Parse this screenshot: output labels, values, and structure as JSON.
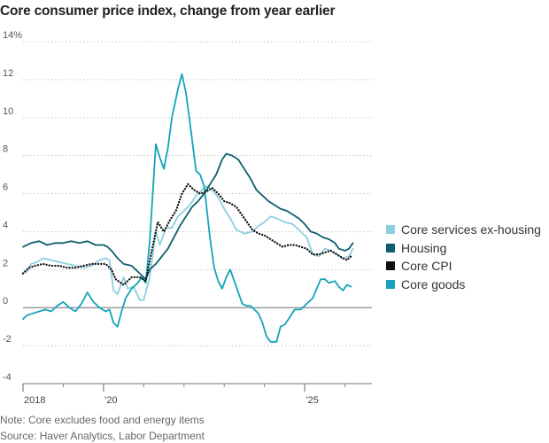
{
  "header": {
    "title": "Core consumer price index, change from year earlier"
  },
  "footer": {
    "note": "Note: Core excludes food and energy items",
    "source": "Source: Haver Analytics, Labor Department"
  },
  "chart_data": {
    "type": "line",
    "title": "Core consumer price index, change from year earlier",
    "xlabel": "",
    "ylabel": "",
    "xlim": [
      2018.0,
      2026.67
    ],
    "ylim": [
      -4,
      14
    ],
    "grid": true,
    "legend_position": "right",
    "x_tick_labels": [
      {
        "x": 2018,
        "label": "2018"
      },
      {
        "x": 2020,
        "label": "’20"
      },
      {
        "x": 2025,
        "label": "’25"
      }
    ],
    "x_minor_ticks": [
      2019,
      2021,
      2022,
      2023,
      2024,
      2026
    ],
    "y_tick_labels": [
      {
        "y": 14,
        "label": "14%"
      },
      {
        "y": 12,
        "label": "12"
      },
      {
        "y": 10,
        "label": "10"
      },
      {
        "y": 8,
        "label": "8"
      },
      {
        "y": 6,
        "label": "6"
      },
      {
        "y": 4,
        "label": "4"
      },
      {
        "y": 2,
        "label": "2"
      },
      {
        "y": 0,
        "label": "0"
      },
      {
        "y": -2,
        "label": "-2"
      },
      {
        "y": -4,
        "label": "-4"
      }
    ],
    "series": [
      {
        "name": "Core services ex-housing",
        "color": "#8ecfdf",
        "style": "solid",
        "points": [
          [
            2018.0,
            1.8
          ],
          [
            2018.1,
            1.9
          ],
          [
            2018.2,
            2.3
          ],
          [
            2018.35,
            2.4
          ],
          [
            2018.5,
            2.6
          ],
          [
            2018.7,
            2.5
          ],
          [
            2018.9,
            2.4
          ],
          [
            2019.1,
            2.3
          ],
          [
            2019.3,
            2.2
          ],
          [
            2019.5,
            2.1
          ],
          [
            2019.7,
            2.2
          ],
          [
            2019.9,
            2.5
          ],
          [
            2020.05,
            2.6
          ],
          [
            2020.15,
            2.5
          ],
          [
            2020.25,
            0.9
          ],
          [
            2020.35,
            0.7
          ],
          [
            2020.5,
            1.6
          ],
          [
            2020.6,
            1.0
          ],
          [
            2020.75,
            1.1
          ],
          [
            2020.9,
            0.4
          ],
          [
            2021.0,
            0.4
          ],
          [
            2021.15,
            1.6
          ],
          [
            2021.3,
            4.0
          ],
          [
            2021.4,
            3.3
          ],
          [
            2021.55,
            4.2
          ],
          [
            2021.7,
            4.2
          ],
          [
            2021.85,
            4.8
          ],
          [
            2022.0,
            5.1
          ],
          [
            2022.15,
            5.4
          ],
          [
            2022.3,
            5.9
          ],
          [
            2022.45,
            6.2
          ],
          [
            2022.55,
            6.4
          ],
          [
            2022.7,
            6.2
          ],
          [
            2022.85,
            5.8
          ],
          [
            2023.0,
            5.2
          ],
          [
            2023.15,
            4.7
          ],
          [
            2023.3,
            4.1
          ],
          [
            2023.5,
            3.9
          ],
          [
            2023.7,
            4.0
          ],
          [
            2023.85,
            4.3
          ],
          [
            2024.0,
            4.5
          ],
          [
            2024.15,
            4.8
          ],
          [
            2024.3,
            4.7
          ],
          [
            2024.5,
            4.5
          ],
          [
            2024.7,
            4.4
          ],
          [
            2024.9,
            4.0
          ],
          [
            2025.05,
            3.7
          ],
          [
            2025.2,
            2.8
          ],
          [
            2025.35,
            2.7
          ],
          [
            2025.5,
            3.1
          ],
          [
            2025.65,
            3.0
          ],
          [
            2025.8,
            2.8
          ],
          [
            2025.95,
            2.6
          ],
          [
            2026.1,
            2.7
          ],
          [
            2026.2,
            3.1
          ]
        ]
      },
      {
        "name": "Housing",
        "color": "#0d5f6e",
        "style": "solid",
        "points": [
          [
            2018.0,
            3.2
          ],
          [
            2018.2,
            3.4
          ],
          [
            2018.4,
            3.5
          ],
          [
            2018.6,
            3.3
          ],
          [
            2018.8,
            3.4
          ],
          [
            2019.0,
            3.4
          ],
          [
            2019.2,
            3.5
          ],
          [
            2019.4,
            3.4
          ],
          [
            2019.6,
            3.5
          ],
          [
            2019.8,
            3.3
          ],
          [
            2020.0,
            3.3
          ],
          [
            2020.1,
            3.2
          ],
          [
            2020.2,
            3.0
          ],
          [
            2020.35,
            2.6
          ],
          [
            2020.5,
            2.3
          ],
          [
            2020.7,
            2.2
          ],
          [
            2020.9,
            1.8
          ],
          [
            2021.05,
            1.5
          ],
          [
            2021.15,
            2.0
          ],
          [
            2021.3,
            2.3
          ],
          [
            2021.45,
            2.7
          ],
          [
            2021.6,
            3.1
          ],
          [
            2021.75,
            3.7
          ],
          [
            2021.9,
            4.3
          ],
          [
            2022.05,
            4.8
          ],
          [
            2022.2,
            5.3
          ],
          [
            2022.35,
            5.6
          ],
          [
            2022.5,
            6.0
          ],
          [
            2022.65,
            6.5
          ],
          [
            2022.8,
            7.0
          ],
          [
            2022.95,
            7.8
          ],
          [
            2023.05,
            8.1
          ],
          [
            2023.2,
            8.0
          ],
          [
            2023.35,
            7.8
          ],
          [
            2023.5,
            7.3
          ],
          [
            2023.65,
            6.8
          ],
          [
            2023.8,
            6.2
          ],
          [
            2023.95,
            5.9
          ],
          [
            2024.1,
            5.6
          ],
          [
            2024.25,
            5.4
          ],
          [
            2024.4,
            5.2
          ],
          [
            2024.55,
            5.1
          ],
          [
            2024.7,
            4.9
          ],
          [
            2024.85,
            4.7
          ],
          [
            2025.0,
            4.4
          ],
          [
            2025.15,
            4.0
          ],
          [
            2025.3,
            3.9
          ],
          [
            2025.45,
            3.7
          ],
          [
            2025.6,
            3.6
          ],
          [
            2025.75,
            3.4
          ],
          [
            2025.85,
            3.1
          ],
          [
            2026.0,
            3.0
          ],
          [
            2026.1,
            3.1
          ],
          [
            2026.2,
            3.4
          ]
        ]
      },
      {
        "name": "Core CPI",
        "color": "#111111",
        "style": "dotted",
        "points": [
          [
            2018.0,
            1.8
          ],
          [
            2018.15,
            2.1
          ],
          [
            2018.3,
            2.2
          ],
          [
            2018.5,
            2.3
          ],
          [
            2018.7,
            2.2
          ],
          [
            2018.9,
            2.2
          ],
          [
            2019.1,
            2.1
          ],
          [
            2019.3,
            2.1
          ],
          [
            2019.5,
            2.2
          ],
          [
            2019.7,
            2.3
          ],
          [
            2019.9,
            2.3
          ],
          [
            2020.05,
            2.3
          ],
          [
            2020.2,
            2.0
          ],
          [
            2020.3,
            1.5
          ],
          [
            2020.5,
            1.2
          ],
          [
            2020.7,
            1.6
          ],
          [
            2020.9,
            1.6
          ],
          [
            2021.05,
            1.4
          ],
          [
            2021.2,
            3.0
          ],
          [
            2021.35,
            4.5
          ],
          [
            2021.5,
            4.0
          ],
          [
            2021.65,
            4.6
          ],
          [
            2021.8,
            5.1
          ],
          [
            2021.95,
            6.0
          ],
          [
            2022.1,
            6.5
          ],
          [
            2022.25,
            6.2
          ],
          [
            2022.4,
            6.0
          ],
          [
            2022.55,
            6.1
          ],
          [
            2022.7,
            6.3
          ],
          [
            2022.85,
            6.0
          ],
          [
            2023.0,
            5.6
          ],
          [
            2023.15,
            5.5
          ],
          [
            2023.3,
            5.3
          ],
          [
            2023.5,
            4.7
          ],
          [
            2023.7,
            4.1
          ],
          [
            2023.85,
            3.9
          ],
          [
            2024.0,
            3.8
          ],
          [
            2024.15,
            3.6
          ],
          [
            2024.3,
            3.4
          ],
          [
            2024.45,
            3.2
          ],
          [
            2024.6,
            3.3
          ],
          [
            2024.75,
            3.3
          ],
          [
            2024.9,
            3.2
          ],
          [
            2025.05,
            3.1
          ],
          [
            2025.2,
            2.8
          ],
          [
            2025.35,
            2.8
          ],
          [
            2025.5,
            2.9
          ],
          [
            2025.65,
            3.0
          ],
          [
            2025.8,
            2.8
          ],
          [
            2025.95,
            2.6
          ],
          [
            2026.05,
            2.5
          ],
          [
            2026.15,
            2.7
          ]
        ]
      },
      {
        "name": "Core goods",
        "color": "#14a3ba",
        "style": "solid",
        "points": [
          [
            2018.0,
            -0.6
          ],
          [
            2018.1,
            -0.4
          ],
          [
            2018.25,
            -0.3
          ],
          [
            2018.4,
            -0.2
          ],
          [
            2018.55,
            -0.1
          ],
          [
            2018.7,
            -0.2
          ],
          [
            2018.85,
            0.1
          ],
          [
            2019.0,
            0.3
          ],
          [
            2019.15,
            0.0
          ],
          [
            2019.3,
            -0.2
          ],
          [
            2019.45,
            0.2
          ],
          [
            2019.6,
            0.8
          ],
          [
            2019.75,
            0.3
          ],
          [
            2019.9,
            0.0
          ],
          [
            2020.05,
            -0.2
          ],
          [
            2020.15,
            -0.1
          ],
          [
            2020.25,
            -0.8
          ],
          [
            2020.35,
            -1.0
          ],
          [
            2020.45,
            -0.2
          ],
          [
            2020.55,
            0.5
          ],
          [
            2020.7,
            1.0
          ],
          [
            2020.85,
            1.3
          ],
          [
            2020.95,
            1.6
          ],
          [
            2021.05,
            1.3
          ],
          [
            2021.15,
            3.5
          ],
          [
            2021.3,
            8.6
          ],
          [
            2021.4,
            7.9
          ],
          [
            2021.5,
            7.3
          ],
          [
            2021.6,
            8.4
          ],
          [
            2021.7,
            10.0
          ],
          [
            2021.85,
            11.5
          ],
          [
            2021.95,
            12.3
          ],
          [
            2022.05,
            11.3
          ],
          [
            2022.15,
            9.7
          ],
          [
            2022.3,
            7.2
          ],
          [
            2022.4,
            7.0
          ],
          [
            2022.5,
            6.4
          ],
          [
            2022.55,
            5.5
          ],
          [
            2022.65,
            3.6
          ],
          [
            2022.75,
            2.1
          ],
          [
            2022.85,
            1.4
          ],
          [
            2022.95,
            1.0
          ],
          [
            2023.05,
            1.6
          ],
          [
            2023.15,
            2.0
          ],
          [
            2023.25,
            1.4
          ],
          [
            2023.35,
            0.8
          ],
          [
            2023.45,
            0.2
          ],
          [
            2023.55,
            0.1
          ],
          [
            2023.65,
            0.1
          ],
          [
            2023.75,
            -0.1
          ],
          [
            2023.85,
            -0.3
          ],
          [
            2023.95,
            -0.8
          ],
          [
            2024.05,
            -1.5
          ],
          [
            2024.15,
            -1.8
          ],
          [
            2024.3,
            -1.8
          ],
          [
            2024.4,
            -1.0
          ],
          [
            2024.5,
            -0.9
          ],
          [
            2024.6,
            -0.6
          ],
          [
            2024.75,
            -0.1
          ],
          [
            2024.9,
            -0.1
          ],
          [
            2025.05,
            0.2
          ],
          [
            2025.2,
            0.5
          ],
          [
            2025.3,
            1.0
          ],
          [
            2025.4,
            1.5
          ],
          [
            2025.5,
            1.5
          ],
          [
            2025.6,
            1.3
          ],
          [
            2025.75,
            1.4
          ],
          [
            2025.85,
            1.1
          ],
          [
            2025.95,
            0.9
          ],
          [
            2026.05,
            1.2
          ],
          [
            2026.15,
            1.1
          ]
        ]
      }
    ]
  }
}
